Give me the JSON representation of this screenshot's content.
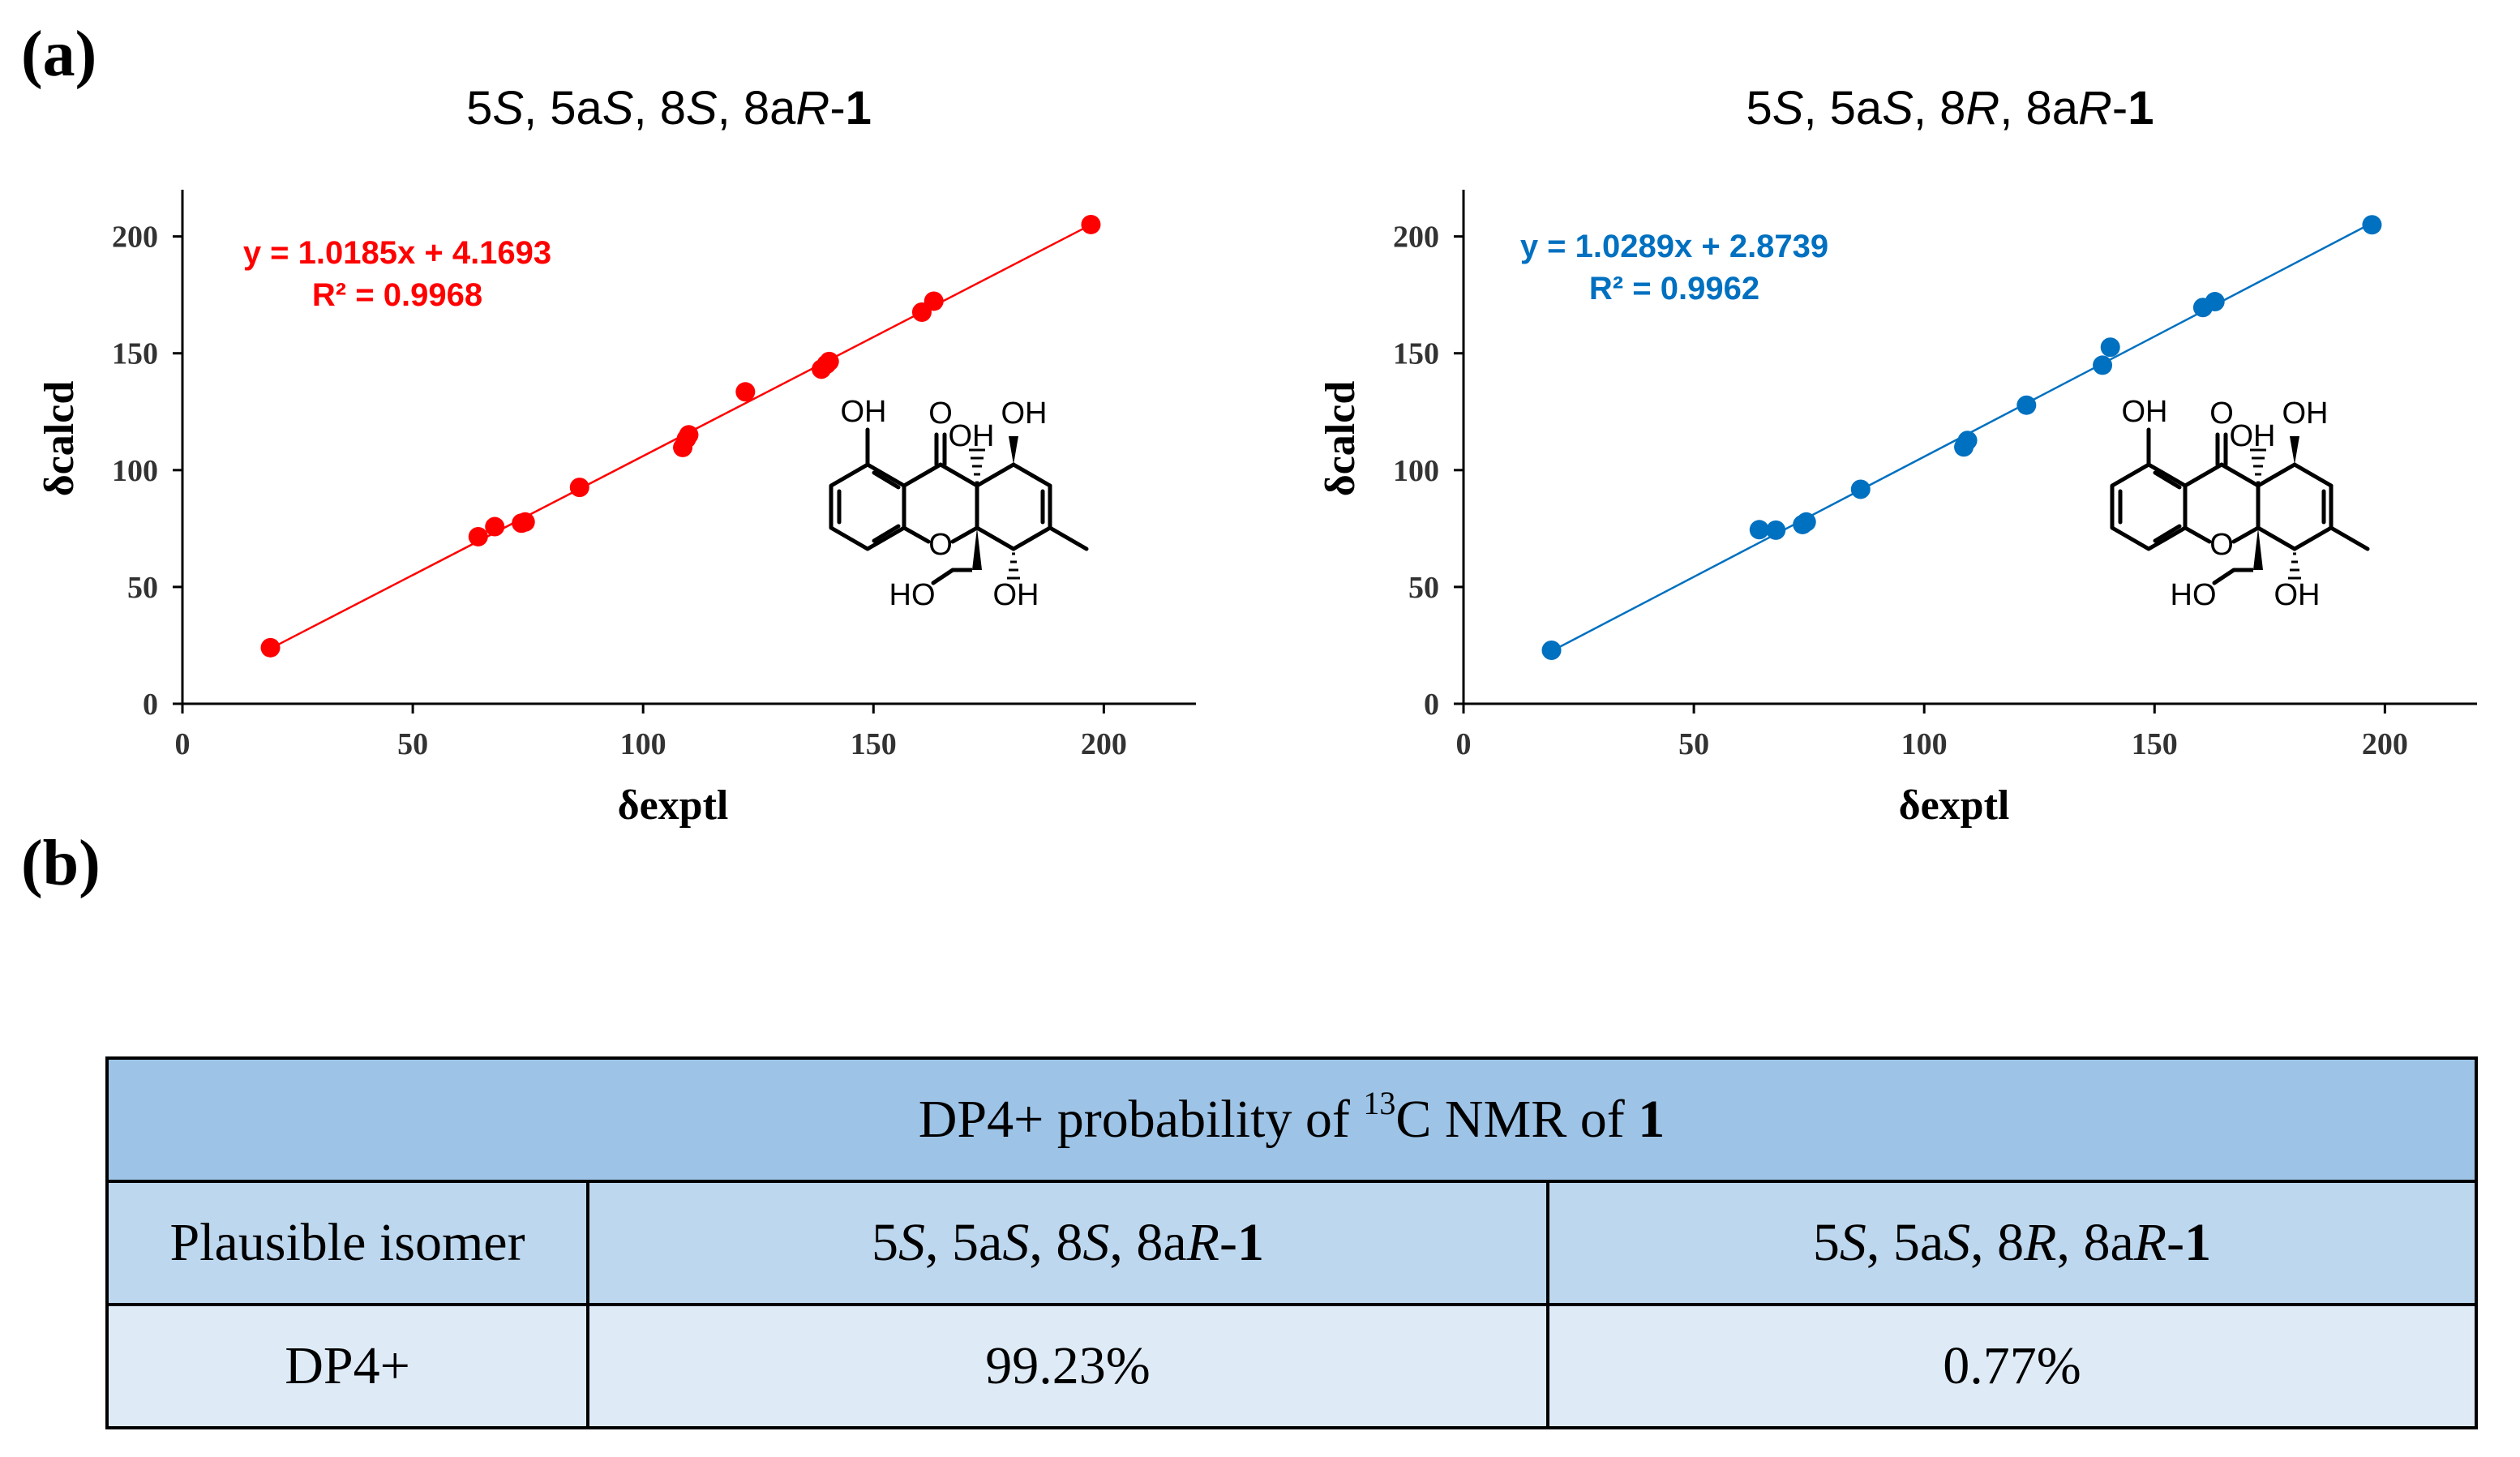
{
  "panel_labels": {
    "a": "(a)",
    "b": "(b)"
  },
  "chart_data": [
    {
      "type": "scatter",
      "title_parts": [
        {
          "t": "5",
          "s": "n"
        },
        {
          "t": "S",
          "s": "i"
        },
        {
          "t": ", 5a",
          "s": "n"
        },
        {
          "t": "S",
          "s": "i"
        },
        {
          "t": ", 8",
          "s": "n"
        },
        {
          "t": "S",
          "s": "i"
        },
        {
          "t": ", 8a",
          "s": "n"
        },
        {
          "t": "R",
          "s": "i"
        },
        {
          "t": "-",
          "s": "n"
        },
        {
          "t": "1",
          "s": "b"
        }
      ],
      "xlabel": "δexptl",
      "ylabel": "δcalcd",
      "xlim": [
        0,
        220
      ],
      "ylim": [
        0,
        220
      ],
      "xticks": [
        0,
        50,
        100,
        150,
        200
      ],
      "yticks": [
        0,
        50,
        100,
        150,
        200
      ],
      "color": "#ff0000",
      "equation": "y = 1.0185x + 4.1693",
      "r2": "R² = 0.9968",
      "fit": {
        "slope": 1.0185,
        "intercept": 4.1693
      },
      "x": [
        19.1,
        64.2,
        67.8,
        73.6,
        74.4,
        86.2,
        108.6,
        109.4,
        109.9,
        122.2,
        138.7,
        139.8,
        140.4,
        160.5,
        163.1,
        197.2
      ],
      "y": [
        24.0,
        71.5,
        75.8,
        77.3,
        77.8,
        92.6,
        109.7,
        113.4,
        115.1,
        133.5,
        143.2,
        145.3,
        146.5,
        167.6,
        172.3,
        205.1
      ]
    },
    {
      "type": "scatter",
      "title_parts": [
        {
          "t": "5",
          "s": "n"
        },
        {
          "t": "S",
          "s": "i"
        },
        {
          "t": ", 5a",
          "s": "n"
        },
        {
          "t": "S",
          "s": "i"
        },
        {
          "t": ", 8",
          "s": "n"
        },
        {
          "t": "R",
          "s": "i"
        },
        {
          "t": ", 8a",
          "s": "n"
        },
        {
          "t": "R",
          "s": "i"
        },
        {
          "t": "-",
          "s": "n"
        },
        {
          "t": "1",
          "s": "b"
        }
      ],
      "xlabel": "δexptl",
      "ylabel": "δcalcd",
      "xlim": [
        0,
        220
      ],
      "ylim": [
        0,
        220
      ],
      "xticks": [
        0,
        50,
        100,
        150,
        200
      ],
      "yticks": [
        0,
        50,
        100,
        150,
        200
      ],
      "color": "#0070c0",
      "equation": "y = 1.0289x + 2.8739",
      "r2": "R² = 0.9962",
      "fit": {
        "slope": 1.0289,
        "intercept": 2.8739
      },
      "x": [
        19.1,
        64.2,
        67.8,
        73.6,
        74.4,
        86.2,
        108.6,
        109.4,
        122.2,
        138.7,
        140.4,
        160.5,
        163.1,
        197.2
      ],
      "y": [
        22.9,
        74.5,
        74.3,
        76.7,
        77.8,
        91.8,
        109.9,
        112.7,
        127.8,
        144.9,
        152.6,
        169.6,
        172.1,
        205.0
      ]
    }
  ],
  "structure_labels": {
    "oh_left": "OH",
    "carbonyl_o": "O",
    "oh_top_right": "OH",
    "oh_ring_junction": "OH",
    "ring_o": "O",
    "ho_bottom": "HO",
    "oh_bottom_right": "OH"
  },
  "table": {
    "header": {
      "text": "DP4+ probability of ",
      "sup": "13",
      "text2": "C NMR of ",
      "bold": "1"
    },
    "row1_label": "Plausible isomer",
    "isomer1_parts": [
      {
        "t": "5",
        "s": "n"
      },
      {
        "t": "S",
        "s": "i"
      },
      {
        "t": ", 5a",
        "s": "n"
      },
      {
        "t": "S",
        "s": "i"
      },
      {
        "t": ", 8",
        "s": "n"
      },
      {
        "t": "S",
        "s": "i"
      },
      {
        "t": ", 8a",
        "s": "n"
      },
      {
        "t": "R",
        "s": "i"
      },
      {
        "t": "-",
        "s": "n"
      },
      {
        "t": "1",
        "s": "b"
      }
    ],
    "isomer2_parts": [
      {
        "t": "5",
        "s": "n"
      },
      {
        "t": "S",
        "s": "i"
      },
      {
        "t": ", 5a",
        "s": "n"
      },
      {
        "t": "S",
        "s": "i"
      },
      {
        "t": ", 8",
        "s": "n"
      },
      {
        "t": "R",
        "s": "i"
      },
      {
        "t": ", 8a",
        "s": "n"
      },
      {
        "t": "R",
        "s": "i"
      },
      {
        "t": "-",
        "s": "n"
      },
      {
        "t": "1",
        "s": "b"
      }
    ],
    "row2_label": "DP4+",
    "value1": "99.23%",
    "value2": "0.77%"
  }
}
